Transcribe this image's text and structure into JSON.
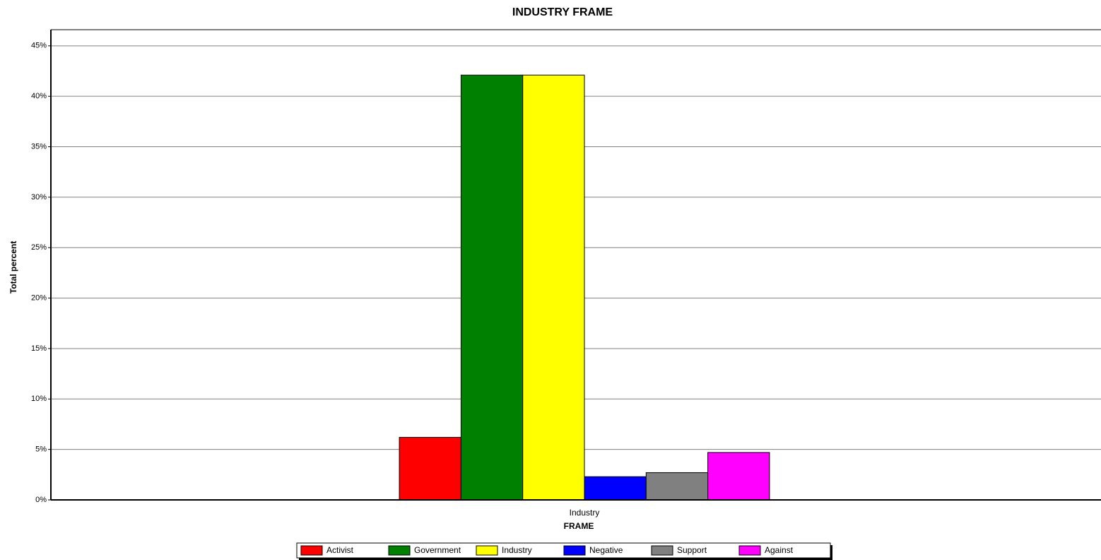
{
  "chart_data": {
    "type": "bar",
    "title": "INDUSTRY FRAME",
    "x_label": "FRAME",
    "y_label": "Total percent",
    "categories": [
      "Industry"
    ],
    "series": [
      {
        "name": "Activist",
        "color": "#ff0000",
        "values": [
          6.2
        ]
      },
      {
        "name": "Government",
        "color": "#008000",
        "values": [
          42.1
        ]
      },
      {
        "name": "Industry",
        "color": "#ffff00",
        "values": [
          42.1
        ]
      },
      {
        "name": "Negative",
        "color": "#0000ff",
        "values": [
          2.3
        ]
      },
      {
        "name": "Support",
        "color": "#808080",
        "values": [
          2.7
        ]
      },
      {
        "name": "Against",
        "color": "#ff00ff",
        "values": [
          4.7
        ]
      }
    ],
    "ylim": [
      0,
      46.6
    ],
    "yticks": [
      {
        "value": 0,
        "label": "0%"
      },
      {
        "value": 5,
        "label": "5%"
      },
      {
        "value": 10,
        "label": "10%"
      },
      {
        "value": 15,
        "label": "15%"
      },
      {
        "value": 20,
        "label": "20%"
      },
      {
        "value": 25,
        "label": "25%"
      },
      {
        "value": 30,
        "label": "30%"
      },
      {
        "value": 35,
        "label": "35%"
      },
      {
        "value": 40,
        "label": "40%"
      },
      {
        "value": 45,
        "label": "45%"
      }
    ],
    "grid": true,
    "legend": "bottom"
  }
}
